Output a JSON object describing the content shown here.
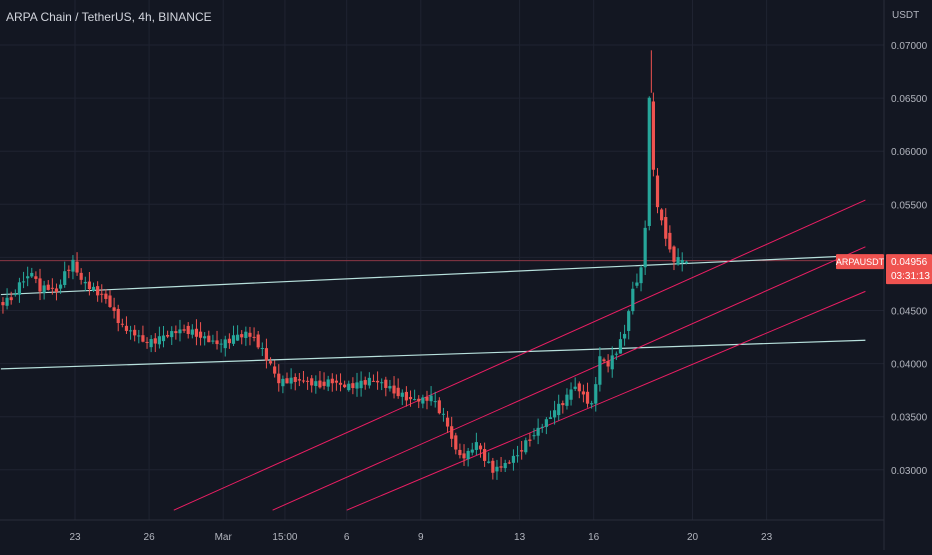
{
  "header": {
    "title": "ARPA Chain / TetherUS, 4h, BINANCE",
    "unit": "USDT"
  },
  "colors": {
    "background": "#131722",
    "grid": "#1f2331",
    "axis_text": "#b2b5be",
    "bull": "#26a69a",
    "bear": "#ef5350",
    "trendline": "#b7e0dc",
    "channel": "#e91e63",
    "price_tag": "#ef5350"
  },
  "chart_data": {
    "type": "candlestick",
    "title": "ARPA Chain / TetherUS, 4h, BINANCE",
    "ylabel": "USDT",
    "ylim": [
      0.0258,
      0.0715
    ],
    "y_ticks": [
      "0.07000",
      "0.06500",
      "0.06000",
      "0.05500",
      "0.05000",
      "0.04500",
      "0.04000",
      "0.03500",
      "0.03000"
    ],
    "x_ticks": [
      "23",
      "26",
      "Mar",
      "15:00",
      "6",
      "9",
      "13",
      "16",
      "20",
      "23"
    ],
    "last_price": {
      "symbol": "ARPAUSDT",
      "price": "0.04956",
      "countdown": "03:31:13",
      "value": 0.04956
    },
    "horizontal_levels": [
      0.0495
    ],
    "trendlines": [
      {
        "from": {
          "x": "20 Feb",
          "y": 0.0465
        },
        "to": {
          "x": "27 Mar",
          "y": 0.0502
        }
      },
      {
        "from": {
          "x": "20 Feb",
          "y": 0.0395
        },
        "to": {
          "x": "27 Mar",
          "y": 0.0422
        }
      }
    ],
    "channel_lines": [
      {
        "from": {
          "x": "27 Feb",
          "y": 0.0262
        },
        "to": {
          "x": "27 Mar",
          "y": 0.0554
        }
      },
      {
        "from": {
          "x": "3 Mar",
          "y": 0.0262
        },
        "to": {
          "x": "27 Mar",
          "y": 0.051
        }
      },
      {
        "from": {
          "x": "6 Mar",
          "y": 0.0262
        },
        "to": {
          "x": "27 Mar",
          "y": 0.0468
        }
      }
    ],
    "price_path": [
      [
        "20 Feb 00:00",
        0.0455
      ],
      [
        "20 Feb 12:00",
        0.0462
      ],
      [
        "21 Feb 00:00",
        0.048
      ],
      [
        "21 Feb 08:00",
        0.0485
      ],
      [
        "21 Feb 16:00",
        0.047
      ],
      [
        "22 Feb 00:00",
        0.0472
      ],
      [
        "22 Feb 08:00",
        0.0468
      ],
      [
        "22 Feb 16:00",
        0.0485
      ],
      [
        "23 Feb 00:00",
        0.0495
      ],
      [
        "23 Feb 08:00",
        0.0478
      ],
      [
        "23 Feb 16:00",
        0.0472
      ],
      [
        "24 Feb 00:00",
        0.0467
      ],
      [
        "24 Feb 08:00",
        0.0462
      ],
      [
        "24 Feb 16:00",
        0.0448
      ],
      [
        "25 Feb 00:00",
        0.0434
      ],
      [
        "25 Feb 12:00",
        0.0428
      ],
      [
        "26 Feb 00:00",
        0.0419
      ],
      [
        "26 Feb 12:00",
        0.0423
      ],
      [
        "27 Feb 00:00",
        0.0429
      ],
      [
        "27 Feb 12:00",
        0.0432
      ],
      [
        "28 Feb 00:00",
        0.0428
      ],
      [
        "28 Feb 12:00",
        0.0422
      ],
      [
        "1 Mar 00:00",
        0.0418
      ],
      [
        "1 Mar 12:00",
        0.0424
      ],
      [
        "2 Mar 00:00",
        0.0428
      ],
      [
        "2 Mar 08:00",
        0.0424
      ],
      [
        "2 Mar 16:00",
        0.0412
      ],
      [
        "3 Mar 00:00",
        0.0398
      ],
      [
        "3 Mar 08:00",
        0.0382
      ],
      [
        "3 Mar 16:00",
        0.0384
      ],
      [
        "4 Mar 00:00",
        0.0385
      ],
      [
        "4 Mar 12:00",
        0.0383
      ],
      [
        "5 Mar 00:00",
        0.038
      ],
      [
        "5 Mar 12:00",
        0.0384
      ],
      [
        "6 Mar 00:00",
        0.0378
      ],
      [
        "6 Mar 12:00",
        0.038
      ],
      [
        "7 Mar 00:00",
        0.0384
      ],
      [
        "7 Mar 12:00",
        0.0382
      ],
      [
        "8 Mar 00:00",
        0.0374
      ],
      [
        "8 Mar 12:00",
        0.0368
      ],
      [
        "9 Mar 00:00",
        0.0365
      ],
      [
        "9 Mar 12:00",
        0.0368
      ],
      [
        "10 Mar 00:00",
        0.035
      ],
      [
        "10 Mar 08:00",
        0.033
      ],
      [
        "10 Mar 16:00",
        0.0312
      ],
      [
        "11 Mar 00:00",
        0.0315
      ],
      [
        "11 Mar 08:00",
        0.0325
      ],
      [
        "11 Mar 16:00",
        0.031
      ],
      [
        "12 Mar 00:00",
        0.03
      ],
      [
        "12 Mar 12:00",
        0.0305
      ],
      [
        "13 Mar 00:00",
        0.0315
      ],
      [
        "13 Mar 12:00",
        0.033
      ],
      [
        "14 Mar 00:00",
        0.0342
      ],
      [
        "14 Mar 12:00",
        0.0355
      ],
      [
        "15 Mar 00:00",
        0.0368
      ],
      [
        "15 Mar 08:00",
        0.038
      ],
      [
        "15 Mar 16:00",
        0.037
      ],
      [
        "16 Mar 00:00",
        0.036
      ],
      [
        "16 Mar 08:00",
        0.0405
      ],
      [
        "16 Mar 16:00",
        0.0398
      ],
      [
        "17 Mar 00:00",
        0.0412
      ],
      [
        "17 Mar 08:00",
        0.043
      ],
      [
        "17 Mar 16:00",
        0.047
      ],
      [
        "18 Mar 00:00",
        0.0488
      ],
      [
        "18 Mar 04:00",
        0.053
      ],
      [
        "18 Mar 08:00",
        0.065
      ],
      [
        "18 Mar 12:00",
        0.058
      ],
      [
        "18 Mar 16:00",
        0.0545
      ],
      [
        "18 Mar 20:00",
        0.0535
      ],
      [
        "19 Mar 00:00",
        0.052
      ],
      [
        "19 Mar 04:00",
        0.051
      ],
      [
        "19 Mar 08:00",
        0.0496
      ],
      [
        "19 Mar 12:00",
        0.0498
      ],
      [
        "19 Mar 16:00",
        0.0495
      ],
      [
        "19 Mar 20:00",
        0.04956
      ]
    ],
    "grid": true
  }
}
